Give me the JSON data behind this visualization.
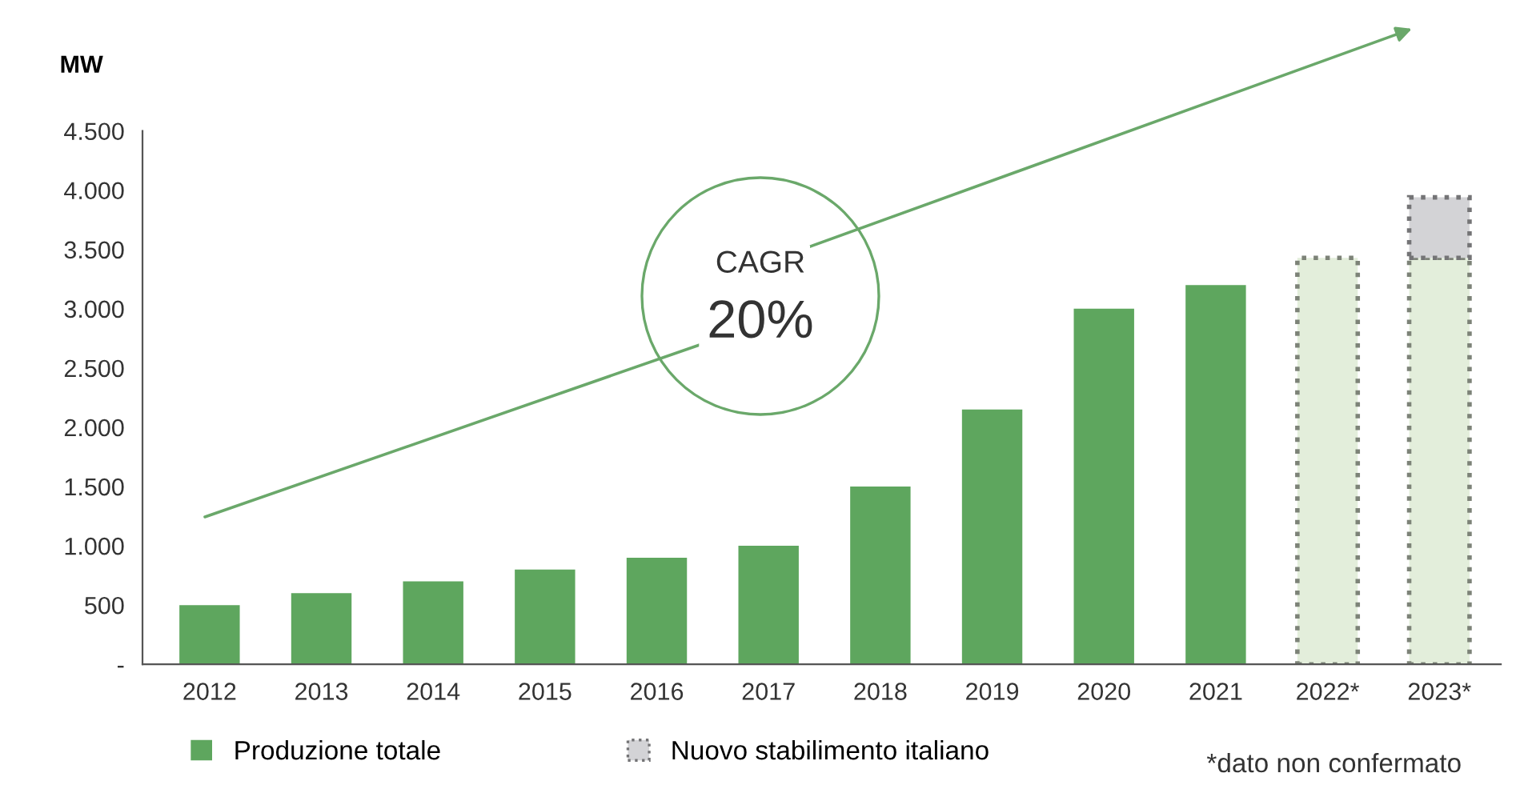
{
  "chart_data": {
    "type": "bar",
    "ylabel": "MW",
    "categories": [
      "2012",
      "2013",
      "2014",
      "2015",
      "2016",
      "2017",
      "2018",
      "2019",
      "2020",
      "2021",
      "2022*",
      "2023*"
    ],
    "stacked": true,
    "series": [
      {
        "name": "Produzione totale",
        "color": "#5ea65e",
        "values": [
          500,
          600,
          700,
          800,
          900,
          1000,
          1500,
          2150,
          3000,
          3200,
          null,
          null
        ]
      },
      {
        "color": "#e3eedb",
        "line_style": "dotted",
        "values": [
          null,
          null,
          null,
          null,
          null,
          null,
          null,
          null,
          null,
          null,
          3430,
          3430
        ]
      },
      {
        "name": "Nuovo stabilimento italiano",
        "color": "#d3d3d6",
        "line_style": "dotted",
        "values": [
          null,
          null,
          null,
          null,
          null,
          null,
          null,
          null,
          null,
          null,
          null,
          510
        ]
      }
    ],
    "ylim": [
      0,
      4500
    ],
    "yticks": [
      {
        "value": 0,
        "label": "-"
      },
      500,
      {
        "value": 1000,
        "label": "1.000"
      },
      {
        "value": 1500,
        "label": "1.500"
      },
      {
        "value": 2000,
        "label": "2.000"
      },
      {
        "value": 2500,
        "label": "2.500"
      },
      {
        "value": 3000,
        "label": "3.000"
      },
      {
        "value": 3500,
        "label": "3.500"
      },
      {
        "value": 4000,
        "label": "4.000"
      },
      {
        "value": 4500,
        "label": "4.500"
      }
    ],
    "grid": false,
    "legend": "bottom",
    "annotations": [
      "CAGR",
      "20%",
      "*dato non confermato"
    ]
  }
}
